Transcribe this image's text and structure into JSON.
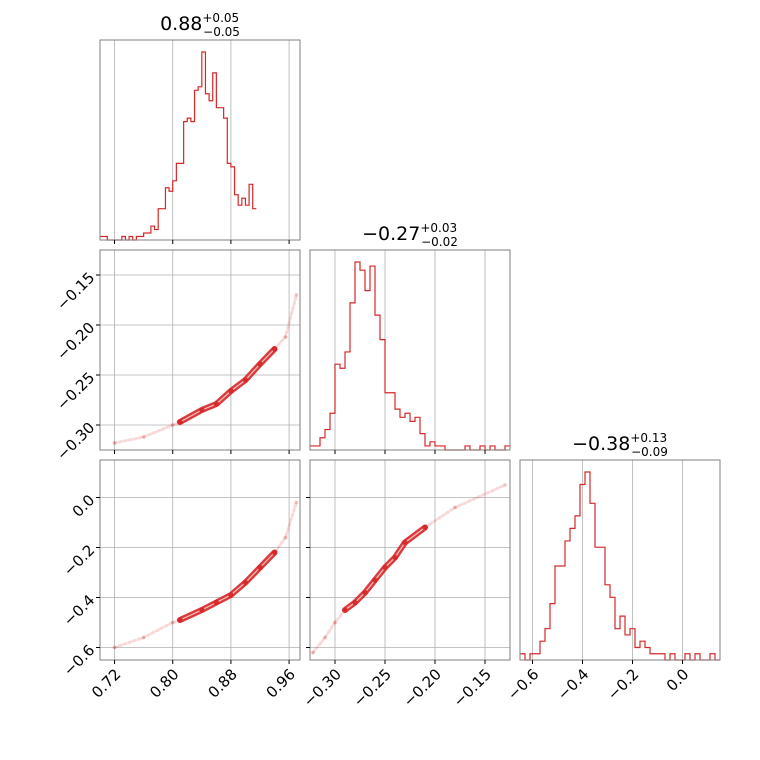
{
  "colors": {
    "series": "#d62728",
    "frame": "#7f7f7f",
    "grid": "#b0b0b0"
  },
  "titles": [
    {
      "main": "0.88",
      "sup": "+0.05",
      "sub": "−0.05"
    },
    {
      "main": "−0.27",
      "sup": "+0.03",
      "sub": "−0.02"
    },
    {
      "main": "−0.38",
      "sup": "+0.13",
      "sub": "−0.09"
    }
  ],
  "chart_data": {
    "type": "corner",
    "grid": true,
    "parameters": [
      {
        "range": [
          0.7,
          0.975
        ],
        "ticks": [
          0.72,
          0.8,
          0.88,
          0.96
        ],
        "tick_labels": [
          "0.72",
          "0.80",
          "0.88",
          "0.96"
        ]
      },
      {
        "range": [
          -0.325,
          -0.125
        ],
        "ticks": [
          -0.3,
          -0.25,
          -0.2,
          -0.15
        ],
        "tick_labels": [
          "−0.30",
          "−0.25",
          "−0.20",
          "−0.15"
        ]
      },
      {
        "range": [
          -0.65,
          0.15
        ],
        "ticks": [
          -0.6,
          -0.4,
          -0.2,
          0.0
        ],
        "tick_labels": [
          "−0.6",
          "−0.4",
          "−0.2",
          "0.0"
        ]
      }
    ],
    "y_tick_labels": {
      "row1": [
        "−0.15",
        "−0.20",
        "−0.25",
        "−0.30"
      ],
      "row2": [
        "0.0",
        "−0.2",
        "−0.4",
        "−0.6"
      ]
    },
    "histograms": [
      {
        "param": 0,
        "bin_start": 0.7,
        "bin_width": 0.005,
        "counts": [
          1,
          1,
          0,
          0,
          0,
          0,
          1,
          0,
          1,
          0,
          1,
          1,
          2,
          2,
          4,
          3,
          9,
          9,
          15,
          14,
          17,
          22,
          22,
          34,
          35,
          34,
          43,
          44,
          54,
          42,
          40,
          48,
          38,
          38,
          35,
          22,
          21,
          13,
          10,
          12,
          10,
          16,
          9
        ]
      },
      {
        "param": 1,
        "bin_start": -0.325,
        "bin_width": 0.005,
        "counts": [
          1,
          1,
          3,
          5,
          9,
          21,
          20,
          24,
          36,
          46,
          44,
          39,
          45,
          33,
          27,
          14,
          14,
          10,
          8,
          9,
          7,
          8,
          4,
          1,
          2,
          1,
          1,
          0,
          0,
          0,
          0,
          1,
          0,
          0,
          1,
          0,
          1,
          0,
          0,
          1
        ]
      },
      {
        "param": 2,
        "bin_start": -0.65,
        "bin_width": 0.02,
        "counts": [
          1,
          0,
          1,
          1,
          3,
          5,
          9,
          15,
          15,
          19,
          21,
          23,
          28,
          30,
          25,
          18,
          18,
          12,
          10,
          5,
          7,
          4,
          5,
          2,
          3,
          2,
          1,
          1,
          1,
          0,
          1,
          0,
          0,
          1,
          0,
          1,
          0,
          0,
          1,
          0
        ]
      }
    ],
    "scatter": [
      {
        "x_param": 0,
        "y_param": 1,
        "points": [
          [
            0.72,
            -0.318
          ],
          [
            0.76,
            -0.312
          ],
          [
            0.8,
            -0.3
          ],
          [
            0.81,
            -0.297
          ],
          [
            0.84,
            -0.285
          ],
          [
            0.86,
            -0.279
          ],
          [
            0.88,
            -0.266
          ],
          [
            0.9,
            -0.255
          ],
          [
            0.92,
            -0.239
          ],
          [
            0.94,
            -0.224
          ],
          [
            0.955,
            -0.212
          ],
          [
            0.97,
            -0.17
          ]
        ]
      },
      {
        "x_param": 0,
        "y_param": 2,
        "points": [
          [
            0.72,
            -0.6
          ],
          [
            0.76,
            -0.56
          ],
          [
            0.8,
            -0.5
          ],
          [
            0.81,
            -0.49
          ],
          [
            0.84,
            -0.45
          ],
          [
            0.86,
            -0.42
          ],
          [
            0.88,
            -0.39
          ],
          [
            0.9,
            -0.34
          ],
          [
            0.92,
            -0.28
          ],
          [
            0.94,
            -0.22
          ],
          [
            0.955,
            -0.16
          ],
          [
            0.97,
            -0.02
          ]
        ]
      },
      {
        "x_param": 1,
        "y_param": 2,
        "points": [
          [
            -0.322,
            -0.62
          ],
          [
            -0.31,
            -0.56
          ],
          [
            -0.3,
            -0.5
          ],
          [
            -0.29,
            -0.45
          ],
          [
            -0.28,
            -0.42
          ],
          [
            -0.27,
            -0.38
          ],
          [
            -0.26,
            -0.33
          ],
          [
            -0.25,
            -0.28
          ],
          [
            -0.24,
            -0.24
          ],
          [
            -0.23,
            -0.18
          ],
          [
            -0.21,
            -0.12
          ],
          [
            -0.18,
            -0.04
          ],
          [
            -0.13,
            0.05
          ]
        ]
      }
    ]
  }
}
